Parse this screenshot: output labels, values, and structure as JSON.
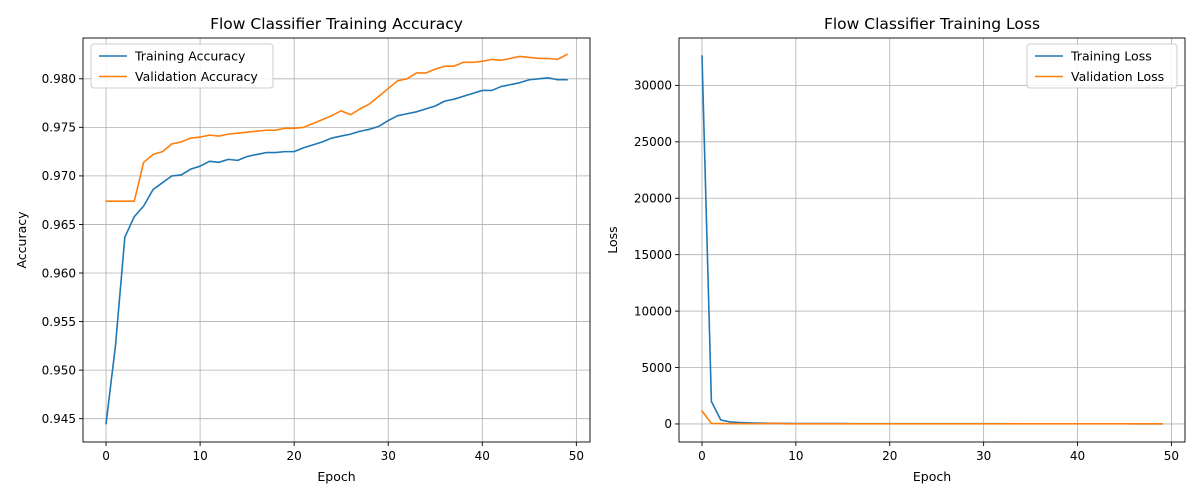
{
  "chart_data": [
    {
      "type": "line",
      "title": "Flow Classifier Training Accuracy",
      "xlabel": "Epoch",
      "ylabel": "Accuracy",
      "xlim": [
        -2.45,
        51.45
      ],
      "ylim": [
        0.9426,
        0.9842
      ],
      "xticks": [
        0,
        10,
        20,
        30,
        40,
        50
      ],
      "yticks": [
        0.945,
        0.95,
        0.955,
        0.96,
        0.965,
        0.97,
        0.975,
        0.98
      ],
      "ytick_labels": [
        "0.945",
        "0.950",
        "0.955",
        "0.960",
        "0.965",
        "0.970",
        "0.975",
        "0.980"
      ],
      "xtick_labels": [
        "0",
        "10",
        "20",
        "30",
        "40",
        "50"
      ],
      "grid": true,
      "legend": "upper-left",
      "x": [
        0,
        1,
        2,
        3,
        4,
        5,
        6,
        7,
        8,
        9,
        10,
        11,
        12,
        13,
        14,
        15,
        16,
        17,
        18,
        19,
        20,
        21,
        22,
        23,
        24,
        25,
        26,
        27,
        28,
        29,
        30,
        31,
        32,
        33,
        34,
        35,
        36,
        37,
        38,
        39,
        40,
        41,
        42,
        43,
        44,
        45,
        46,
        47,
        48,
        49
      ],
      "series": [
        {
          "name": "Training Accuracy",
          "color": "#1f77b4",
          "values": [
            0.9445,
            0.9525,
            0.9637,
            0.9658,
            0.9669,
            0.9686,
            0.9693,
            0.97,
            0.9701,
            0.9707,
            0.971,
            0.9715,
            0.9714,
            0.9717,
            0.9716,
            0.972,
            0.9722,
            0.9724,
            0.9724,
            0.9725,
            0.9725,
            0.9729,
            0.9732,
            0.9735,
            0.9739,
            0.9741,
            0.9743,
            0.9746,
            0.9748,
            0.9751,
            0.9757,
            0.9762,
            0.9764,
            0.9766,
            0.9769,
            0.9772,
            0.9777,
            0.9779,
            0.9782,
            0.9785,
            0.9788,
            0.9788,
            0.9792,
            0.9794,
            0.9796,
            0.9799,
            0.98,
            0.9801,
            0.9799,
            0.9799
          ]
        },
        {
          "name": "Validation Accuracy",
          "color": "#ff7f0e",
          "values": [
            0.9674,
            0.9674,
            0.9674,
            0.9674,
            0.9714,
            0.9722,
            0.9725,
            0.9733,
            0.9735,
            0.9739,
            0.974,
            0.9742,
            0.9741,
            0.9743,
            0.9744,
            0.9745,
            0.9746,
            0.9747,
            0.9747,
            0.9749,
            0.9749,
            0.975,
            0.9754,
            0.9758,
            0.9762,
            0.9767,
            0.9763,
            0.9769,
            0.9774,
            0.9782,
            0.979,
            0.9798,
            0.98,
            0.9806,
            0.9806,
            0.981,
            0.9813,
            0.9813,
            0.9817,
            0.9817,
            0.9818,
            0.982,
            0.9819,
            0.9821,
            0.9823,
            0.9822,
            0.9821,
            0.9821,
            0.982,
            0.9825
          ]
        }
      ]
    },
    {
      "type": "line",
      "title": "Flow Classifier Training Loss",
      "xlabel": "Epoch",
      "ylabel": "Loss",
      "xlim": [
        -2.45,
        51.45
      ],
      "ylim": [
        -1600,
        34200
      ],
      "xticks": [
        0,
        10,
        20,
        30,
        40,
        50
      ],
      "yticks": [
        0,
        5000,
        10000,
        15000,
        20000,
        25000,
        30000
      ],
      "ytick_labels": [
        "0",
        "5000",
        "10000",
        "15000",
        "20000",
        "25000",
        "30000"
      ],
      "xtick_labels": [
        "0",
        "10",
        "20",
        "30",
        "40",
        "50"
      ],
      "grid": true,
      "legend": "upper-right",
      "x": [
        0,
        1,
        2,
        3,
        4,
        5,
        6,
        7,
        8,
        9,
        10,
        11,
        12,
        13,
        14,
        15,
        16,
        17,
        18,
        19,
        20,
        21,
        22,
        23,
        24,
        25,
        26,
        27,
        28,
        29,
        30,
        31,
        32,
        33,
        34,
        35,
        36,
        37,
        38,
        39,
        40,
        41,
        42,
        43,
        44,
        45,
        46,
        47,
        48,
        49
      ],
      "series": [
        {
          "name": "Training Loss",
          "color": "#1f77b4",
          "values": [
            32600,
            2000,
            350,
            180,
            120,
            90,
            70,
            60,
            50,
            45,
            40,
            38,
            36,
            34,
            32,
            30,
            29,
            28,
            27,
            26,
            25,
            24,
            23,
            22,
            22,
            21,
            21,
            20,
            20,
            20,
            19,
            19,
            19,
            18,
            18,
            18,
            18,
            17,
            17,
            17,
            17,
            16,
            16,
            16,
            16,
            16,
            15,
            15,
            15,
            15
          ]
        },
        {
          "name": "Validation Loss",
          "color": "#ff7f0e",
          "values": [
            1150,
            50,
            30,
            25,
            20,
            18,
            16,
            30,
            50,
            15,
            14,
            13,
            12,
            12,
            11,
            11,
            11,
            10,
            10,
            10,
            10,
            10,
            9,
            9,
            9,
            9,
            9,
            9,
            9,
            9,
            9,
            8,
            8,
            8,
            8,
            8,
            8,
            8,
            8,
            8,
            8,
            8,
            8,
            8,
            8,
            8,
            8,
            8,
            8,
            8
          ]
        }
      ]
    }
  ]
}
